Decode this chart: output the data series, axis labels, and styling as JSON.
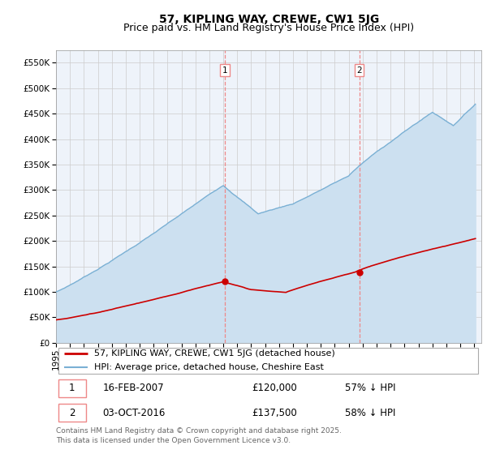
{
  "title": "57, KIPLING WAY, CREWE, CW1 5JG",
  "subtitle": "Price paid vs. HM Land Registry's House Price Index (HPI)",
  "ylim": [
    0,
    575000
  ],
  "yticks": [
    0,
    50000,
    100000,
    150000,
    200000,
    250000,
    300000,
    350000,
    400000,
    450000,
    500000,
    550000
  ],
  "xlim_start": 1995.0,
  "xlim_end": 2025.5,
  "sale1_x": 2007.125,
  "sale1_price": 120000,
  "sale2_x": 2016.75,
  "sale2_price": 137500,
  "legend_label_red": "57, KIPLING WAY, CREWE, CW1 5JG (detached house)",
  "legend_label_blue": "HPI: Average price, detached house, Cheshire East",
  "ann1_num": "1",
  "ann1_date": "16-FEB-2007",
  "ann1_price": "£120,000",
  "ann1_pct": "57% ↓ HPI",
  "ann2_num": "2",
  "ann2_date": "03-OCT-2016",
  "ann2_price": "£137,500",
  "ann2_pct": "58% ↓ HPI",
  "footer": "Contains HM Land Registry data © Crown copyright and database right 2025.\nThis data is licensed under the Open Government Licence v3.0.",
  "red_color": "#cc0000",
  "blue_color": "#7ab0d4",
  "blue_fill_color": "#cce0f0",
  "grid_color": "#cccccc",
  "vline_color": "#ee8888",
  "bg_color": "#eef3fa",
  "title_fontsize": 10,
  "subtitle_fontsize": 9,
  "tick_fontsize": 7.5,
  "legend_fontsize": 8,
  "ann_fontsize": 8.5,
  "footer_fontsize": 6.5
}
